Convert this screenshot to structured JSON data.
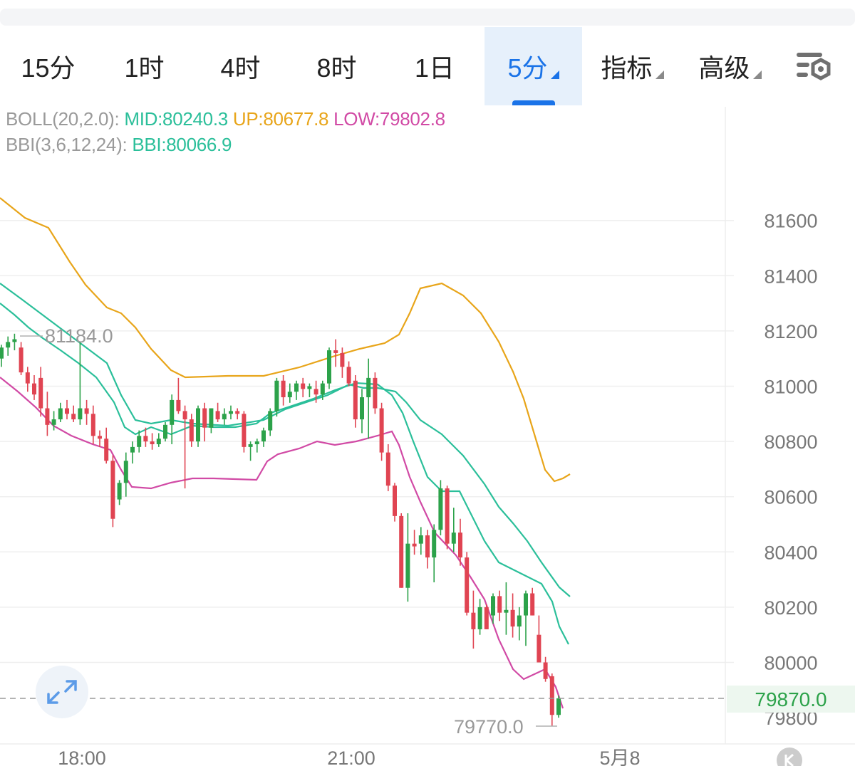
{
  "tabs": [
    {
      "label": "15分"
    },
    {
      "label": "1时"
    },
    {
      "label": "4时"
    },
    {
      "label": "8时"
    },
    {
      "label": "1日"
    },
    {
      "label": "5分",
      "active": true
    },
    {
      "label": "指标"
    },
    {
      "label": "高级"
    }
  ],
  "legend": {
    "boll_label": "BOLL(20,2.0):",
    "mid": "MID:80240.3",
    "up": "UP:80677.8",
    "low": "LOW:79802.8",
    "bbi_label": "BBI(3,6,12,24):",
    "bbi": "BBI:80066.9"
  },
  "colors": {
    "up_candle": "#2ca24a",
    "down_candle": "#e04452",
    "boll_up": "#e8a51a",
    "boll_mid": "#2bbf9a",
    "boll_low": "#d14aa5",
    "active_tab": "#1a73e8"
  },
  "price_tag": "79870.0",
  "chart_data": {
    "type": "candlestick",
    "yticks": [
      81600,
      81400,
      81200,
      81000,
      80800,
      80600,
      80400,
      80200,
      80000,
      79800
    ],
    "ylim": [
      79700,
      81800
    ],
    "xticks": [
      "18:00",
      "21:00",
      "5月8"
    ],
    "annotations": {
      "high_label": "81184.0",
      "low_label": "79770.0",
      "last_price": 79870.0
    },
    "candles": [
      [
        81100,
        81150,
        81070,
        81140
      ],
      [
        81140,
        81180,
        81110,
        81160
      ],
      [
        81160,
        81190,
        81130,
        81170
      ],
      [
        81140,
        81160,
        81040,
        81050
      ],
      [
        81050,
        81070,
        80980,
        81010
      ],
      [
        81010,
        81040,
        80950,
        80970
      ],
      [
        81030,
        81070,
        80890,
        80920
      ],
      [
        80920,
        80980,
        80820,
        80860
      ],
      [
        80860,
        80910,
        80840,
        80880
      ],
      [
        80880,
        80940,
        80870,
        80920
      ],
      [
        80920,
        80950,
        80880,
        80900
      ],
      [
        80900,
        80930,
        80870,
        80880
      ],
      [
        80880,
        81160,
        80860,
        80920
      ],
      [
        80920,
        80950,
        80860,
        80900
      ],
      [
        80900,
        80930,
        80790,
        80820
      ],
      [
        80820,
        80840,
        80780,
        80810
      ],
      [
        80810,
        80850,
        80720,
        80730
      ],
      [
        80730,
        80750,
        80490,
        80520
      ],
      [
        80590,
        80660,
        80570,
        80650
      ],
      [
        80650,
        80760,
        80600,
        80730
      ],
      [
        80760,
        80800,
        80720,
        80780
      ],
      [
        80780,
        80840,
        80760,
        80820
      ],
      [
        80820,
        80850,
        80780,
        80800
      ],
      [
        80800,
        80830,
        80770,
        80790
      ],
      [
        80790,
        80830,
        80780,
        80810
      ],
      [
        80810,
        80870,
        80800,
        80860
      ],
      [
        80860,
        80970,
        80790,
        80950
      ],
      [
        80950,
        81030,
        80900,
        80910
      ],
      [
        80910,
        80930,
        80630,
        80880
      ],
      [
        80880,
        80900,
        80780,
        80800
      ],
      [
        80800,
        80930,
        80780,
        80920
      ],
      [
        80920,
        80940,
        80800,
        80850
      ],
      [
        80850,
        80920,
        80830,
        80920
      ],
      [
        80910,
        80940,
        80870,
        80880
      ],
      [
        80880,
        80920,
        80860,
        80900
      ],
      [
        80900,
        80930,
        80880,
        80910
      ],
      [
        80910,
        80920,
        80880,
        80900
      ],
      [
        80900,
        80910,
        80760,
        80780
      ],
      [
        80780,
        80800,
        80730,
        80790
      ],
      [
        80790,
        80810,
        80760,
        80800
      ],
      [
        80800,
        80850,
        80780,
        80840
      ],
      [
        80840,
        80920,
        80820,
        80910
      ],
      [
        80910,
        81030,
        80890,
        81020
      ],
      [
        81020,
        81040,
        80930,
        80960
      ],
      [
        80960,
        81010,
        80940,
        80980
      ],
      [
        80980,
        81020,
        80950,
        81010
      ],
      [
        81010,
        81030,
        80960,
        80990
      ],
      [
        80990,
        81010,
        80960,
        81000
      ],
      [
        80990,
        81020,
        80940,
        80970
      ],
      [
        80970,
        81020,
        80950,
        81010
      ],
      [
        81010,
        81140,
        80990,
        81130
      ],
      [
        81130,
        81170,
        81070,
        81120
      ],
      [
        81120,
        81140,
        81030,
        81070
      ],
      [
        81070,
        81090,
        81000,
        81010
      ],
      [
        81020,
        81040,
        80850,
        80880
      ],
      [
        80880,
        80990,
        80830,
        80960
      ],
      [
        80960,
        81100,
        80810,
        81030
      ],
      [
        81030,
        81050,
        80900,
        80920
      ],
      [
        80920,
        80940,
        80730,
        80760
      ],
      [
        80760,
        80790,
        80620,
        80640
      ],
      [
        80640,
        80650,
        80510,
        80530
      ],
      [
        80530,
        80540,
        80270,
        80270
      ],
      [
        80270,
        80540,
        80220,
        80430
      ],
      [
        80430,
        80480,
        80390,
        80420
      ],
      [
        80430,
        80490,
        80390,
        80460
      ],
      [
        80460,
        80480,
        80340,
        80380
      ],
      [
        80380,
        80500,
        80290,
        80480
      ],
      [
        80480,
        80660,
        80460,
        80630
      ],
      [
        80630,
        80640,
        80410,
        80430
      ],
      [
        80430,
        80560,
        80400,
        80470
      ],
      [
        80470,
        80520,
        80350,
        80380
      ],
      [
        80380,
        80400,
        80170,
        80180
      ],
      [
        80180,
        80260,
        80050,
        80120
      ],
      [
        80120,
        80230,
        80100,
        80200
      ],
      [
        80200,
        80210,
        80120,
        80120
      ],
      [
        80170,
        80250,
        80140,
        80240
      ],
      [
        80240,
        80260,
        80150,
        80180
      ],
      [
        80180,
        80290,
        80100,
        80190
      ],
      [
        80190,
        80250,
        80090,
        80130
      ],
      [
        80130,
        80200,
        80080,
        80170
      ],
      [
        80170,
        80260,
        80060,
        80250
      ],
      [
        80250,
        80270,
        80170,
        80170
      ],
      [
        80100,
        80170,
        80000,
        80000
      ],
      [
        80000,
        80020,
        79930,
        79940
      ],
      [
        79950,
        79960,
        79770,
        79810
      ],
      [
        79810,
        79880,
        79800,
        79870
      ]
    ],
    "boll_up": [
      [
        0,
        278
      ],
      [
        35,
        306
      ],
      [
        68,
        320
      ],
      [
        98,
        368
      ],
      [
        120,
        400
      ],
      [
        150,
        432
      ],
      [
        170,
        440
      ],
      [
        190,
        460
      ],
      [
        212,
        490
      ],
      [
        240,
        520
      ],
      [
        260,
        530
      ],
      [
        320,
        528
      ],
      [
        370,
        528
      ],
      [
        420,
        516
      ],
      [
        470,
        500
      ],
      [
        505,
        490
      ],
      [
        540,
        482
      ],
      [
        560,
        470
      ],
      [
        575,
        440
      ],
      [
        590,
        405
      ],
      [
        620,
        398
      ],
      [
        650,
        415
      ],
      [
        675,
        440
      ],
      [
        700,
        480
      ],
      [
        720,
        522
      ],
      [
        735,
        560
      ],
      [
        750,
        610
      ],
      [
        765,
        660
      ],
      [
        778,
        676
      ],
      [
        790,
        672
      ],
      [
        800,
        666
      ]
    ],
    "boll_mid": [
      [
        0,
        398
      ],
      [
        30,
        420
      ],
      [
        70,
        450
      ],
      [
        110,
        480
      ],
      [
        150,
        510
      ],
      [
        170,
        555
      ],
      [
        190,
        590
      ],
      [
        212,
        595
      ],
      [
        240,
        590
      ],
      [
        270,
        595
      ],
      [
        320,
        598
      ],
      [
        370,
        590
      ],
      [
        400,
        575
      ],
      [
        430,
        565
      ],
      [
        460,
        555
      ],
      [
        490,
        540
      ],
      [
        510,
        545
      ],
      [
        530,
        545
      ],
      [
        555,
        550
      ],
      [
        570,
        565
      ],
      [
        590,
        590
      ],
      [
        620,
        610
      ],
      [
        650,
        640
      ],
      [
        680,
        680
      ],
      [
        700,
        712
      ],
      [
        720,
        735
      ],
      [
        740,
        760
      ],
      [
        760,
        790
      ],
      [
        785,
        825
      ],
      [
        800,
        838
      ]
    ],
    "bbi": [
      [
        0,
        426
      ],
      [
        20,
        442
      ],
      [
        40,
        460
      ],
      [
        60,
        475
      ],
      [
        85,
        492
      ],
      [
        110,
        510
      ],
      [
        135,
        530
      ],
      [
        160,
        565
      ],
      [
        175,
        600
      ],
      [
        190,
        610
      ],
      [
        212,
        600
      ],
      [
        240,
        610
      ],
      [
        270,
        598
      ],
      [
        300,
        600
      ],
      [
        330,
        600
      ],
      [
        360,
        595
      ],
      [
        380,
        580
      ],
      [
        410,
        570
      ],
      [
        440,
        560
      ],
      [
        470,
        548
      ],
      [
        500,
        538
      ],
      [
        530,
        540
      ],
      [
        550,
        555
      ],
      [
        565,
        580
      ],
      [
        580,
        620
      ],
      [
        600,
        670
      ],
      [
        620,
        690
      ],
      [
        645,
        690
      ],
      [
        660,
        720
      ],
      [
        680,
        760
      ],
      [
        700,
        790
      ],
      [
        720,
        800
      ],
      [
        740,
        810
      ],
      [
        760,
        820
      ],
      [
        775,
        845
      ],
      [
        785,
        880
      ],
      [
        798,
        905
      ]
    ],
    "boll_low": [
      [
        0,
        530
      ],
      [
        25,
        550
      ],
      [
        50,
        572
      ],
      [
        75,
        598
      ],
      [
        100,
        612
      ],
      [
        130,
        624
      ],
      [
        155,
        632
      ],
      [
        170,
        660
      ],
      [
        185,
        684
      ],
      [
        212,
        686
      ],
      [
        240,
        678
      ],
      [
        270,
        672
      ],
      [
        300,
        672
      ],
      [
        330,
        673
      ],
      [
        360,
        674
      ],
      [
        375,
        648
      ],
      [
        390,
        638
      ],
      [
        420,
        630
      ],
      [
        445,
        620
      ],
      [
        470,
        625
      ],
      [
        500,
        620
      ],
      [
        530,
        612
      ],
      [
        550,
        606
      ],
      [
        560,
        625
      ],
      [
        575,
        670
      ],
      [
        590,
        705
      ],
      [
        610,
        748
      ],
      [
        640,
        780
      ],
      [
        660,
        810
      ],
      [
        680,
        842
      ],
      [
        700,
        898
      ],
      [
        720,
        940
      ],
      [
        735,
        954
      ],
      [
        750,
        947
      ],
      [
        765,
        940
      ],
      [
        780,
        965
      ],
      [
        790,
        995
      ]
    ]
  }
}
